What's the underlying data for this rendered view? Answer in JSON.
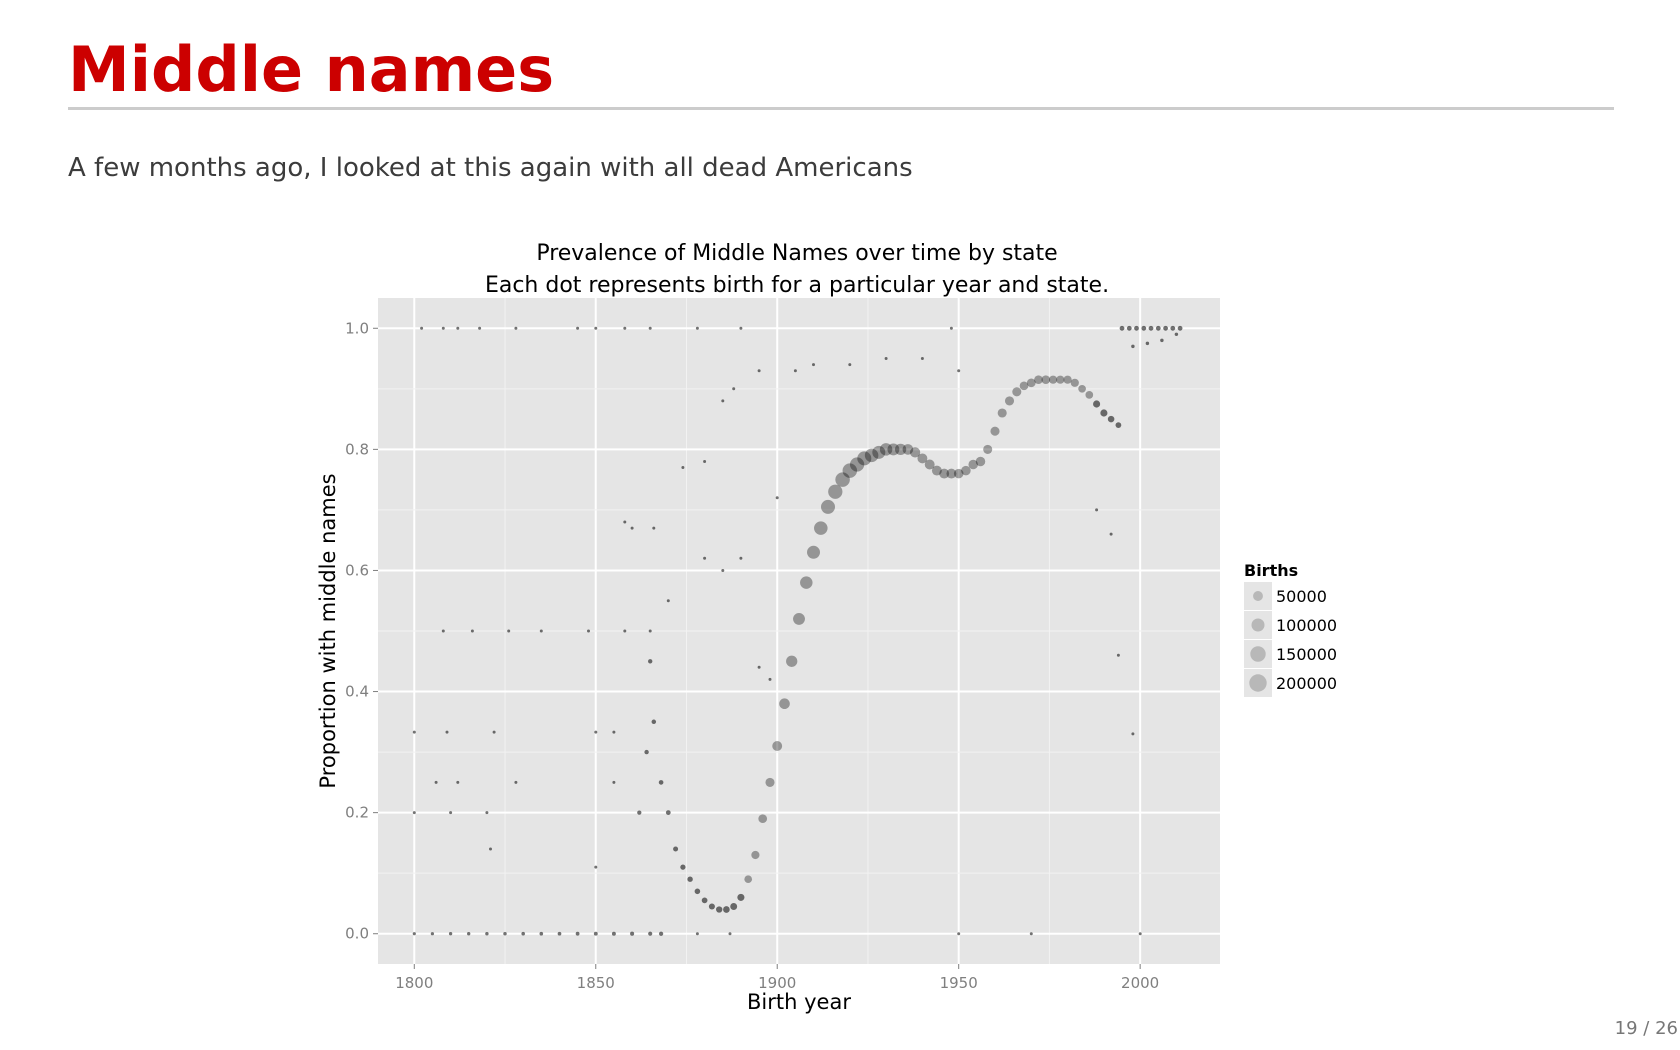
{
  "slide": {
    "title": "Middle names",
    "subtitle": "A few months ago, I looked at this again with all dead Americans",
    "page_number": "19 / 26"
  },
  "colors": {
    "title": "#cc0000",
    "panel_background": "#e5e5e5",
    "grid": "#ffffff",
    "points": "#000000",
    "legend_points": "#b8b8b8"
  },
  "chart_data": {
    "type": "scatter",
    "title": "Prevalence of Middle Names over time by state",
    "subtitle": "Each dot represents birth for a particular year and state.",
    "xlabel": "Birth year",
    "ylabel": "Proportion with middle names",
    "xlim": [
      1790,
      2022
    ],
    "ylim": [
      -0.05,
      1.05
    ],
    "x_ticks": [
      1800,
      1850,
      1900,
      1950,
      2000
    ],
    "x_tick_labels": [
      "1800",
      "1850",
      "1900",
      "1950",
      "2000"
    ],
    "y_ticks": [
      0.0,
      0.2,
      0.4,
      0.6,
      0.8,
      1.0
    ],
    "y_tick_labels": [
      "0.0",
      "0.2",
      "0.4",
      "0.6",
      "0.8",
      "1.0"
    ],
    "grid": true,
    "legend": {
      "title": "Births",
      "placement": "right",
      "entries": [
        "50000",
        "100000",
        "150000",
        "200000"
      ],
      "values": [
        50000,
        100000,
        150000,
        200000
      ]
    },
    "series": [
      {
        "values_note_free": true,
        "points": [
          [
            1800,
            0.0,
            500
          ],
          [
            1805,
            0.0,
            600
          ],
          [
            1810,
            0.0,
            700
          ],
          [
            1815,
            0.0,
            800
          ],
          [
            1820,
            0.0,
            900
          ],
          [
            1825,
            0.0,
            1000
          ],
          [
            1830,
            0.0,
            1200
          ],
          [
            1835,
            0.0,
            1300
          ],
          [
            1840,
            0.0,
            1500
          ],
          [
            1845,
            0.0,
            1700
          ],
          [
            1850,
            0.0,
            1900
          ],
          [
            1855,
            0.0,
            2100
          ],
          [
            1860,
            0.0,
            2400
          ],
          [
            1865,
            0.0,
            2700
          ],
          [
            1868,
            0.0,
            3000
          ],
          [
            1802,
            1.0,
            300
          ],
          [
            1808,
            1.0,
            300
          ],
          [
            1812,
            1.0,
            300
          ],
          [
            1818,
            1.0,
            300
          ],
          [
            1828,
            1.0,
            300
          ],
          [
            1845,
            1.0,
            300
          ],
          [
            1850,
            1.0,
            300
          ],
          [
            1858,
            1.0,
            300
          ],
          [
            1865,
            1.0,
            300
          ],
          [
            1878,
            1.0,
            300
          ],
          [
            1890,
            1.0,
            300
          ],
          [
            1948,
            1.0,
            300
          ],
          [
            1808,
            0.5,
            300
          ],
          [
            1816,
            0.5,
            300
          ],
          [
            1826,
            0.5,
            300
          ],
          [
            1835,
            0.5,
            300
          ],
          [
            1848,
            0.5,
            300
          ],
          [
            1858,
            0.5,
            300
          ],
          [
            1865,
            0.5,
            300
          ],
          [
            1800,
            0.333,
            300
          ],
          [
            1809,
            0.333,
            300
          ],
          [
            1822,
            0.333,
            300
          ],
          [
            1850,
            0.333,
            300
          ],
          [
            1855,
            0.333,
            300
          ],
          [
            1800,
            0.2,
            300
          ],
          [
            1810,
            0.2,
            300
          ],
          [
            1820,
            0.2,
            300
          ],
          [
            1806,
            0.25,
            300
          ],
          [
            1812,
            0.25,
            300
          ],
          [
            1828,
            0.25,
            300
          ],
          [
            1855,
            0.25,
            300
          ],
          [
            1850,
            0.11,
            300
          ],
          [
            1821,
            0.14,
            300
          ],
          [
            1862,
            0.2,
            3000
          ],
          [
            1864,
            0.3,
            3500
          ],
          [
            1865,
            0.45,
            3500
          ],
          [
            1866,
            0.35,
            4000
          ],
          [
            1868,
            0.25,
            4500
          ],
          [
            1870,
            0.2,
            5000
          ],
          [
            1872,
            0.14,
            6000
          ],
          [
            1874,
            0.11,
            7000
          ],
          [
            1876,
            0.09,
            8000
          ],
          [
            1878,
            0.07,
            9000
          ],
          [
            1880,
            0.055,
            10000
          ],
          [
            1882,
            0.045,
            12000
          ],
          [
            1884,
            0.04,
            14000
          ],
          [
            1886,
            0.04,
            16000
          ],
          [
            1888,
            0.045,
            18000
          ],
          [
            1890,
            0.06,
            20000
          ],
          [
            1892,
            0.09,
            25000
          ],
          [
            1894,
            0.13,
            30000
          ],
          [
            1896,
            0.19,
            35000
          ],
          [
            1898,
            0.25,
            40000
          ],
          [
            1900,
            0.31,
            50000
          ],
          [
            1902,
            0.38,
            60000
          ],
          [
            1904,
            0.45,
            70000
          ],
          [
            1906,
            0.52,
            80000
          ],
          [
            1908,
            0.58,
            90000
          ],
          [
            1910,
            0.63,
            100000
          ],
          [
            1912,
            0.67,
            110000
          ],
          [
            1914,
            0.705,
            120000
          ],
          [
            1916,
            0.73,
            125000
          ],
          [
            1918,
            0.75,
            130000
          ],
          [
            1920,
            0.765,
            130000
          ],
          [
            1922,
            0.775,
            125000
          ],
          [
            1924,
            0.785,
            120000
          ],
          [
            1926,
            0.79,
            110000
          ],
          [
            1928,
            0.795,
            100000
          ],
          [
            1930,
            0.8,
            90000
          ],
          [
            1932,
            0.8,
            80000
          ],
          [
            1934,
            0.8,
            70000
          ],
          [
            1936,
            0.8,
            60000
          ],
          [
            1938,
            0.795,
            55000
          ],
          [
            1940,
            0.785,
            50000
          ],
          [
            1942,
            0.775,
            50000
          ],
          [
            1944,
            0.765,
            50000
          ],
          [
            1946,
            0.76,
            50000
          ],
          [
            1948,
            0.76,
            50000
          ],
          [
            1950,
            0.76,
            45000
          ],
          [
            1952,
            0.765,
            45000
          ],
          [
            1954,
            0.775,
            45000
          ],
          [
            1956,
            0.78,
            45000
          ],
          [
            1958,
            0.8,
            40000
          ],
          [
            1960,
            0.83,
            40000
          ],
          [
            1962,
            0.86,
            40000
          ],
          [
            1964,
            0.88,
            40000
          ],
          [
            1966,
            0.895,
            40000
          ],
          [
            1968,
            0.905,
            35000
          ],
          [
            1970,
            0.91,
            35000
          ],
          [
            1972,
            0.915,
            35000
          ],
          [
            1974,
            0.915,
            35000
          ],
          [
            1976,
            0.915,
            30000
          ],
          [
            1978,
            0.915,
            30000
          ],
          [
            1980,
            0.915,
            30000
          ],
          [
            1982,
            0.91,
            30000
          ],
          [
            1984,
            0.9,
            25000
          ],
          [
            1986,
            0.89,
            25000
          ],
          [
            1988,
            0.875,
            20000
          ],
          [
            1990,
            0.86,
            20000
          ],
          [
            1992,
            0.85,
            15000
          ],
          [
            1994,
            0.84,
            10000
          ],
          [
            1995,
            1.0,
            5000
          ],
          [
            1997,
            1.0,
            5000
          ],
          [
            1999,
            1.0,
            5000
          ],
          [
            2001,
            1.0,
            5000
          ],
          [
            2003,
            1.0,
            5000
          ],
          [
            2005,
            1.0,
            5000
          ],
          [
            2007,
            1.0,
            5000
          ],
          [
            2009,
            1.0,
            5000
          ],
          [
            2011,
            1.0,
            5000
          ],
          [
            1998,
            0.97,
            1000
          ],
          [
            2002,
            0.975,
            1000
          ],
          [
            2006,
            0.98,
            1000
          ],
          [
            2010,
            0.99,
            1000
          ],
          [
            1885,
            0.88,
            300
          ],
          [
            1888,
            0.9,
            300
          ],
          [
            1895,
            0.93,
            300
          ],
          [
            1900,
            0.72,
            300
          ],
          [
            1905,
            0.93,
            300
          ],
          [
            1910,
            0.94,
            300
          ],
          [
            1920,
            0.94,
            300
          ],
          [
            1930,
            0.95,
            300
          ],
          [
            1940,
            0.95,
            300
          ],
          [
            1950,
            0.93,
            300
          ],
          [
            1880,
            0.78,
            300
          ],
          [
            1874,
            0.77,
            300
          ],
          [
            1870,
            0.55,
            300
          ],
          [
            1880,
            0.62,
            300
          ],
          [
            1885,
            0.6,
            300
          ],
          [
            1890,
            0.62,
            300
          ],
          [
            1895,
            0.44,
            300
          ],
          [
            1898,
            0.42,
            300
          ],
          [
            1992,
            0.66,
            300
          ],
          [
            1988,
            0.7,
            300
          ],
          [
            1994,
            0.46,
            300
          ],
          [
            1998,
            0.33,
            300
          ],
          [
            2000,
            0.0,
            300
          ],
          [
            1950,
            0.0,
            300
          ],
          [
            1970,
            0.0,
            300
          ],
          [
            1887,
            0.0,
            300
          ],
          [
            1878,
            0.0,
            300
          ],
          [
            1860,
            0.67,
            300
          ],
          [
            1866,
            0.67,
            300
          ],
          [
            1858,
            0.68,
            300
          ]
        ]
      }
    ]
  }
}
